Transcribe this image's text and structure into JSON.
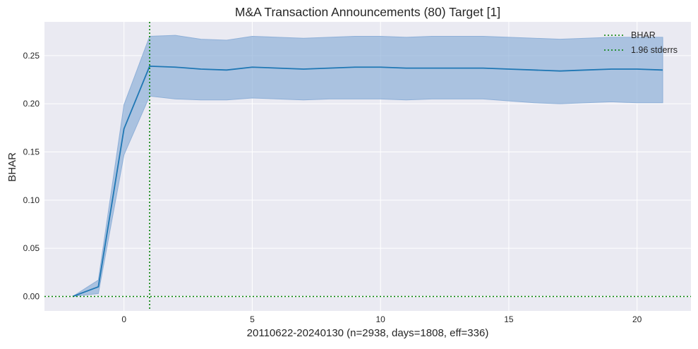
{
  "chart_data": {
    "type": "line",
    "title": "M&A Transaction Announcements (80) Target [1]",
    "xlabel": "20110622-20240130 (n=2938, days=1808, eff=336)",
    "ylabel": "BHAR",
    "xlim": [
      -3.1,
      22.1
    ],
    "ylim": [
      -0.015,
      0.285
    ],
    "x_ticks": [
      0,
      5,
      10,
      15,
      20
    ],
    "x_tick_labels": [
      "0",
      "5",
      "10",
      "15",
      "20"
    ],
    "y_ticks": [
      0.0,
      0.05,
      0.1,
      0.15,
      0.2,
      0.25
    ],
    "y_tick_labels": [
      "0.00",
      "0.05",
      "0.10",
      "0.15",
      "0.20",
      "0.25"
    ],
    "grid": true,
    "legend_position": "top-right",
    "legend": [
      {
        "label": "BHAR",
        "style": "dotted",
        "color": "#008000"
      },
      {
        "label": "1.96 stderrs",
        "style": "dotted",
        "color": "#008000"
      }
    ],
    "series": [
      {
        "x": [
          -2,
          -1,
          0,
          1,
          2,
          3,
          4,
          5,
          6,
          7,
          8,
          9,
          10,
          11,
          12,
          13,
          14,
          15,
          16,
          17,
          18,
          19,
          20,
          21
        ],
        "values": [
          0.0,
          0.01,
          0.174,
          0.239,
          0.238,
          0.236,
          0.235,
          0.238,
          0.237,
          0.236,
          0.237,
          0.238,
          0.238,
          0.237,
          0.237,
          0.237,
          0.237,
          0.236,
          0.235,
          0.234,
          0.235,
          0.236,
          0.236,
          0.235
        ],
        "upper": [
          0.0,
          0.017,
          0.199,
          0.27,
          0.271,
          0.267,
          0.266,
          0.27,
          0.269,
          0.268,
          0.269,
          0.27,
          0.27,
          0.269,
          0.27,
          0.27,
          0.27,
          0.269,
          0.268,
          0.267,
          0.268,
          0.269,
          0.269,
          0.269
        ],
        "lower": [
          0.0,
          0.003,
          0.147,
          0.208,
          0.205,
          0.204,
          0.204,
          0.206,
          0.205,
          0.204,
          0.205,
          0.205,
          0.205,
          0.204,
          0.205,
          0.205,
          0.205,
          0.203,
          0.201,
          0.2,
          0.201,
          0.202,
          0.201,
          0.201
        ]
      }
    ],
    "reference_lines": [
      {
        "orientation": "horizontal",
        "value": 0.0
      },
      {
        "orientation": "vertical",
        "value": 1
      }
    ],
    "colors": {
      "line": "#1f77b4",
      "band": "#8fb0d8",
      "reference": "#008000",
      "plot_background": "#eaeaf2",
      "grid": "#ffffff"
    }
  }
}
